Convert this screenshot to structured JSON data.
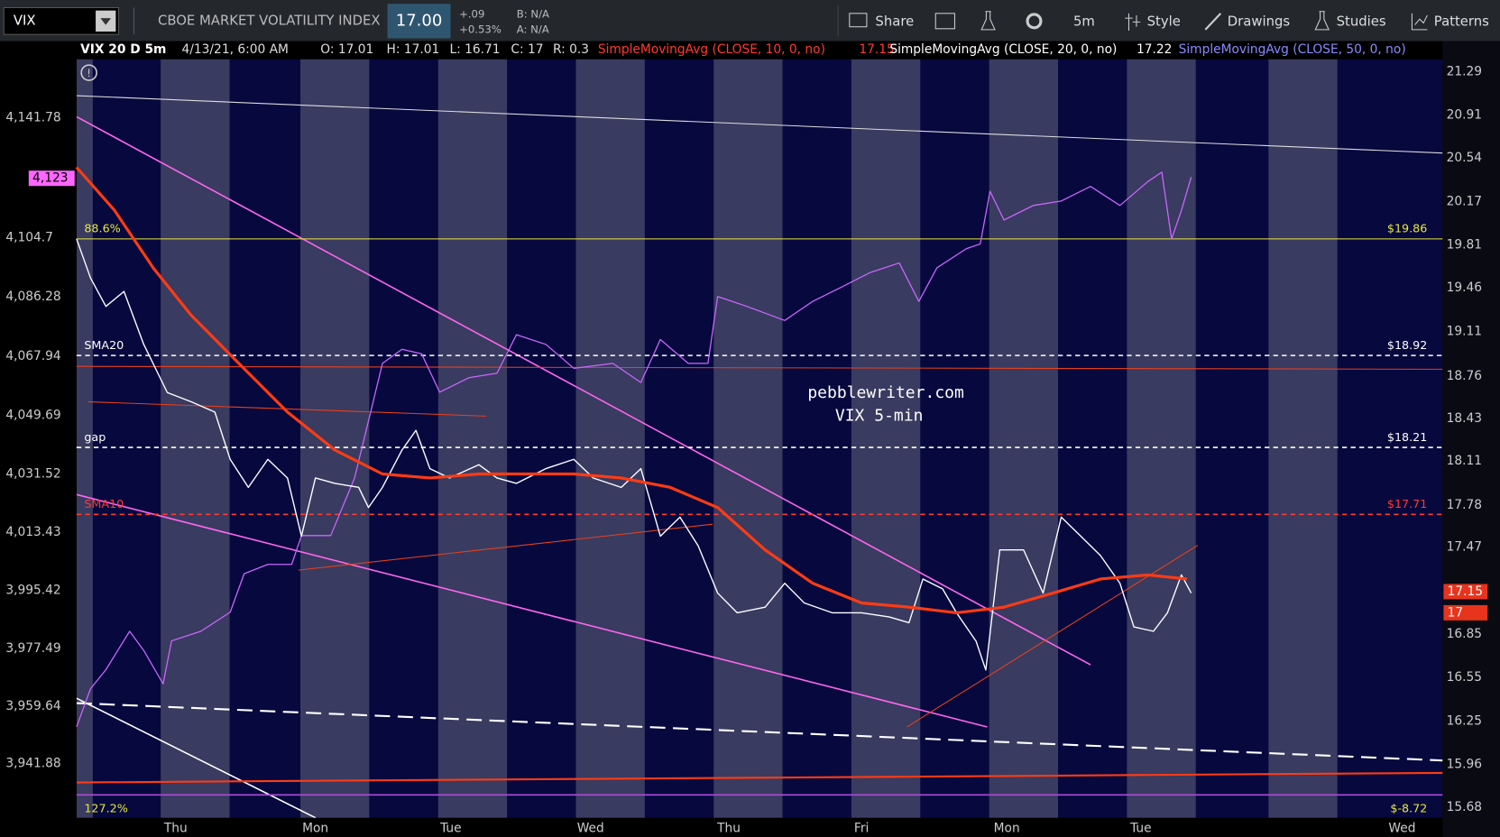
{
  "toolbar": {
    "symbol": "VIX",
    "description": "CBOE MARKET VOLATILITY INDEX",
    "last": "17.00",
    "change": "+.09",
    "change_pct": "+0.53%",
    "bid": "B: N/A",
    "ask": "A: N/A",
    "buttons": [
      "Share",
      "5m",
      "Style",
      "Drawings",
      "Studies",
      "Patterns"
    ]
  },
  "info_bar": {
    "study": "VIX 20 D 5m",
    "time": "4/13/21, 6:00 AM",
    "open": "O: 17.01",
    "high": "H: 17.01",
    "low": "L: 16.71",
    "close": "C: 17",
    "range": "R: 0.3",
    "sma10": "SimpleMovingAvg (CLOSE, 10, 0, no)",
    "sma10_value": "17.15",
    "sma20": "SimpleMovingAvg (CLOSE, 20, 0, no)",
    "sma20_value": "17.22",
    "sma50": "SimpleMovingAvg (CLOSE, 50, 0, no)"
  },
  "chart": {
    "type": "line",
    "watermark": [
      "pebblewriter.com",
      "VIX 5-min"
    ],
    "xlim": [
      0,
      9.78
    ],
    "xticks": [
      {
        "value": 0.71,
        "label": "Thu"
      },
      {
        "value": 1.71,
        "label": "Mon"
      },
      {
        "value": 2.68,
        "label": "Tue"
      },
      {
        "value": 3.68,
        "label": "Wed"
      },
      {
        "value": 4.67,
        "label": "Thu"
      },
      {
        "value": 5.62,
        "label": "Fri"
      },
      {
        "value": 6.66,
        "label": "Mon"
      },
      {
        "value": 7.62,
        "label": "Tue"
      },
      {
        "value": 9.49,
        "label": "Wed"
      }
    ],
    "ylim": [
      15.61,
      21.4
    ],
    "log": true,
    "yticks": [
      21.29,
      20.91,
      20.54,
      20.17,
      19.81,
      19.46,
      19.11,
      18.76,
      18.43,
      18.11,
      17.78,
      17.47,
      17.16,
      16.85,
      16.55,
      16.25,
      15.96,
      15.68
    ],
    "y2lim": [
      3925.03,
      4159.84
    ],
    "y2ticks": [
      {
        "value": 4141.78,
        "label": "4,141.78"
      },
      {
        "value": 4104.7,
        "label": "4,104.7"
      },
      {
        "value": 4086.28,
        "label": "4,086.28"
      },
      {
        "value": 4067.94,
        "label": "4,067.94"
      },
      {
        "value": 4049.69,
        "label": "4,049.69"
      },
      {
        "value": 4031.52,
        "label": "4,031.52"
      },
      {
        "value": 4013.43,
        "label": "4,013.43"
      },
      {
        "value": 3995.42,
        "label": "3,995.42"
      },
      {
        "value": 3977.49,
        "label": "3,977.49"
      },
      {
        "value": 3959.64,
        "label": "3,959.64"
      },
      {
        "value": 3941.88,
        "label": "3,941.88"
      }
    ],
    "price_tags": [
      {
        "value": 17.15,
        "label": "17.15",
        "color": "#e8341c"
      },
      {
        "value": 17,
        "label": "17",
        "color": "#e8341c"
      }
    ],
    "y2_tag": {
      "value": 4123,
      "label": "4,123",
      "color": "#ff66ff"
    },
    "levels": [
      {
        "value": 19.86,
        "label": "$19.86",
        "left_label": "88.6%",
        "color": "#e8e83a",
        "dash": false
      },
      {
        "value": 18.92,
        "label": "$18.92",
        "left_label": "SMA20",
        "color": "#ffffff",
        "dash": true
      },
      {
        "value": 18.21,
        "label": "$18.21",
        "left_label": "gap",
        "color": "#ffffff",
        "dash": true
      },
      {
        "value": 17.71,
        "label": "$17.71",
        "left_label": "SMA10",
        "color": "#ff3b2f",
        "dash": true
      }
    ],
    "bottom_level": {
      "label": "$-8.72",
      "left_label": "127.2%",
      "color": "#e8e83a"
    },
    "series": [
      {
        "color": "#cc66ff",
        "axis": "y2",
        "width": 1.2,
        "x": [
          0,
          0.1,
          0.21,
          0.38,
          0.48,
          0.62,
          0.68,
          0.89,
          1.1,
          1.2,
          1.37,
          1.54,
          1.61,
          1.82,
          1.99,
          2.09,
          2.19,
          2.33,
          2.47,
          2.6,
          2.81,
          3.01,
          3.15,
          3.36,
          3.56,
          3.84,
          4.04,
          4.18,
          4.38,
          4.52,
          4.59,
          4.79,
          5.07,
          5.27,
          5.48,
          5.68,
          5.89,
          6.03,
          6.16,
          6.37,
          6.47,
          6.54,
          6.64,
          6.85,
          7.05,
          7.26,
          7.47,
          7.67,
          7.77,
          7.84,
          7.91,
          7.98
        ],
        "values": [
          3953.2,
          3965,
          3970.9,
          3982.8,
          3976.9,
          3966.5,
          3979.8,
          3982.8,
          3988.7,
          4000.6,
          4003.5,
          4003.5,
          4012.4,
          4012.4,
          4030.2,
          4047.9,
          4065.7,
          4070.1,
          4068.7,
          4056.8,
          4061.3,
          4062.7,
          4074.6,
          4071.6,
          4064.2,
          4065.7,
          4059.8,
          4073.1,
          4065.7,
          4065.7,
          4086.4,
          4083.5,
          4079,
          4084.9,
          4089.4,
          4093.8,
          4096.8,
          4084.9,
          4095.3,
          4101.2,
          4102.7,
          4119,
          4110.1,
          4114.6,
          4116,
          4120.5,
          4114.6,
          4122,
          4124.9,
          4104.2,
          4113.1,
          4123.4
        ]
      },
      {
        "color": "#ffffff",
        "width": 1.3,
        "x": [
          0,
          0.1,
          0.21,
          0.34,
          0.48,
          0.65,
          0.82,
          0.99,
          1.1,
          1.23,
          1.37,
          1.51,
          1.61,
          1.71,
          1.85,
          2.02,
          2.09,
          2.19,
          2.33,
          2.43,
          2.53,
          2.67,
          2.88,
          3.01,
          3.15,
          3.36,
          3.56,
          3.7,
          3.9,
          4.04,
          4.18,
          4.32,
          4.45,
          4.59,
          4.73,
          4.93,
          5.07,
          5.21,
          5.41,
          5.62,
          5.82,
          5.96,
          6.06,
          6.2,
          6.3,
          6.44,
          6.51,
          6.61,
          6.78,
          6.92,
          7.05,
          7.19,
          7.33,
          7.47,
          7.57,
          7.71,
          7.81,
          7.91,
          7.98
        ],
        "values": [
          19.86,
          19.54,
          19.31,
          19.43,
          19.01,
          18.63,
          18.56,
          18.48,
          18.12,
          17.91,
          18.12,
          17.98,
          17.55,
          17.98,
          17.94,
          17.91,
          17.76,
          17.91,
          18.19,
          18.34,
          18.05,
          17.98,
          18.08,
          17.98,
          17.94,
          18.05,
          18.12,
          17.98,
          17.91,
          18.05,
          17.55,
          17.69,
          17.48,
          17.14,
          17,
          17.04,
          17.21,
          17.07,
          17,
          17,
          16.97,
          16.93,
          17.24,
          17.17,
          17,
          16.8,
          16.6,
          17.45,
          17.45,
          17.14,
          17.69,
          17.55,
          17.41,
          17.21,
          16.9,
          16.87,
          17,
          17.27,
          17.14
        ]
      },
      {
        "color": "#ff3b14",
        "width": 3,
        "x": [
          0,
          0.27,
          0.55,
          0.82,
          1.16,
          1.51,
          1.85,
          2.19,
          2.53,
          2.88,
          3.22,
          3.56,
          3.9,
          4.25,
          4.59,
          4.93,
          5.27,
          5.62,
          5.96,
          6.3,
          6.64,
          6.99,
          7.33,
          7.67,
          7.95
        ],
        "values": [
          20.46,
          20.1,
          19.62,
          19.24,
          18.86,
          18.48,
          18.19,
          18.01,
          17.98,
          18.01,
          18.01,
          18.01,
          17.98,
          17.91,
          17.76,
          17.45,
          17.21,
          17.07,
          17.04,
          17,
          17.04,
          17.14,
          17.24,
          17.27,
          17.24
        ]
      }
    ]
  }
}
